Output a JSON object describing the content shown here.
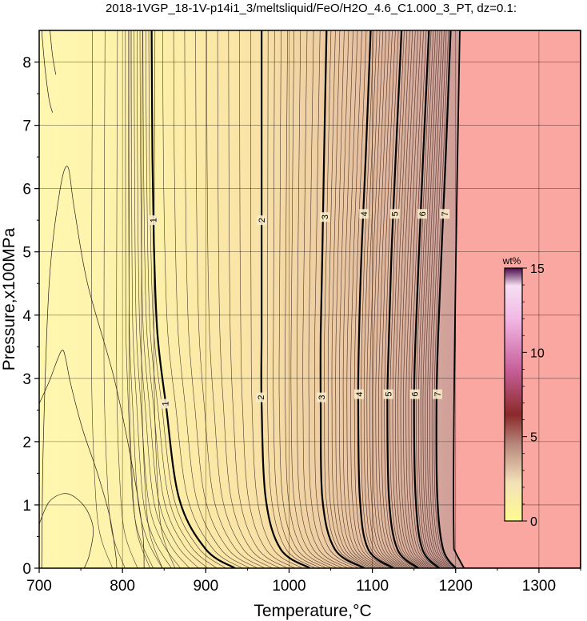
{
  "chart_data": {
    "type": "contour",
    "title": "2018-1VGP_18-1V-p14i1_3/meltsliquid/FeO/H2O_4.6_C1.000_3_PT, dz=0.1:",
    "xlabel": "Temperature,°C",
    "ylabel": "Pressure,x100MPa",
    "xlim": [
      700,
      1350
    ],
    "ylim": [
      0,
      8.5
    ],
    "x_ticks": [
      700,
      800,
      900,
      1000,
      1100,
      1200,
      1300
    ],
    "y_ticks": [
      0,
      1,
      2,
      3,
      4,
      5,
      6,
      7,
      8
    ],
    "grid": true,
    "colorbar": {
      "unit": "wt%",
      "range": [
        0,
        15
      ],
      "ticks": [
        0,
        5,
        10,
        15
      ]
    },
    "region_no_data": {
      "t_boundary_at_p0": 1210,
      "t_boundary_at_p8_5": 1205,
      "color": "#f9a7a0"
    },
    "major_contours": [
      {
        "level": 1,
        "label": "1",
        "points": [
          [
            935,
            0
          ],
          [
            900,
            0.3
          ],
          [
            868,
            1.1
          ],
          [
            852,
            2.6
          ],
          [
            842,
            3.7
          ],
          [
            838,
            5.0
          ],
          [
            836,
            6.5
          ],
          [
            835,
            8.5
          ]
        ]
      },
      {
        "level": 2,
        "label": "2",
        "points": [
          [
            1025,
            0
          ],
          [
            990,
            0.3
          ],
          [
            972,
            1.1
          ],
          [
            967,
            2.6
          ],
          [
            967,
            3.7
          ],
          [
            967,
            5.0
          ],
          [
            967,
            6.5
          ],
          [
            967,
            8.5
          ]
        ]
      },
      {
        "level": 3,
        "label": "3",
        "points": [
          [
            1090,
            0
          ],
          [
            1055,
            0.3
          ],
          [
            1040,
            1.1
          ],
          [
            1038,
            2.6
          ],
          [
            1038,
            3.7
          ],
          [
            1040,
            5.0
          ],
          [
            1042,
            6.5
          ],
          [
            1045,
            8.5
          ]
        ]
      },
      {
        "level": 4,
        "label": "4",
        "points": [
          [
            1125,
            0
          ],
          [
            1095,
            0.3
          ],
          [
            1085,
            1.1
          ],
          [
            1083,
            2.6
          ],
          [
            1084,
            3.7
          ],
          [
            1087,
            5.0
          ],
          [
            1092,
            6.5
          ],
          [
            1098,
            8.5
          ]
        ]
      },
      {
        "level": 5,
        "label": "5",
        "points": [
          [
            1155,
            0
          ],
          [
            1130,
            0.3
          ],
          [
            1120,
            1.1
          ],
          [
            1118,
            2.6
          ],
          [
            1120,
            3.7
          ],
          [
            1123,
            5.0
          ],
          [
            1128,
            6.5
          ],
          [
            1135,
            8.5
          ]
        ]
      },
      {
        "level": 6,
        "label": "6",
        "points": [
          [
            1180,
            0
          ],
          [
            1160,
            0.3
          ],
          [
            1152,
            1.1
          ],
          [
            1150,
            2.6
          ],
          [
            1152,
            3.7
          ],
          [
            1156,
            5.0
          ],
          [
            1161,
            6.5
          ],
          [
            1168,
            8.5
          ]
        ]
      },
      {
        "level": 7,
        "label": "7",
        "points": [
          [
            1200,
            0
          ],
          [
            1185,
            0.3
          ],
          [
            1178,
            1.1
          ],
          [
            1177,
            2.6
          ],
          [
            1179,
            3.7
          ],
          [
            1183,
            5.0
          ],
          [
            1188,
            6.5
          ],
          [
            1194,
            8.5
          ]
        ]
      }
    ],
    "contour_labels": [
      {
        "text": "1",
        "x": 851,
        "y": 2.6
      },
      {
        "text": "1",
        "x": 837,
        "y": 5.5
      },
      {
        "text": "2",
        "x": 966,
        "y": 2.7
      },
      {
        "text": "2",
        "x": 967,
        "y": 5.5
      },
      {
        "text": "3",
        "x": 1039,
        "y": 2.7
      },
      {
        "text": "3",
        "x": 1043,
        "y": 5.55
      },
      {
        "text": "4",
        "x": 1084,
        "y": 2.75
      },
      {
        "text": "4",
        "x": 1090,
        "y": 5.6
      },
      {
        "text": "5",
        "x": 1119,
        "y": 2.75
      },
      {
        "text": "5",
        "x": 1127,
        "y": 5.6
      },
      {
        "text": "6",
        "x": 1151,
        "y": 2.75
      },
      {
        "text": "6",
        "x": 1160,
        "y": 5.6
      },
      {
        "text": "7",
        "x": 1178,
        "y": 2.75
      },
      {
        "text": "7",
        "x": 1187,
        "y": 5.6
      }
    ],
    "minor_contour_count": 70,
    "low_region_contours": [
      {
        "points": [
          [
            700,
            0.7
          ],
          [
            712,
            1.05
          ],
          [
            730,
            1.18
          ],
          [
            745,
            1.1
          ],
          [
            758,
            0.9
          ],
          [
            765,
            0.6
          ],
          [
            760,
            0.2
          ],
          [
            754,
            0
          ]
        ]
      },
      {
        "points": [
          [
            700,
            2.6
          ],
          [
            712,
            2.95
          ],
          [
            722,
            3.3
          ],
          [
            728,
            3.45
          ],
          [
            732,
            3.3
          ],
          [
            738,
            2.9
          ],
          [
            752,
            2.2
          ],
          [
            770,
            1.5
          ],
          [
            785,
            0.8
          ],
          [
            792,
            0.2
          ],
          [
            793,
            0
          ]
        ]
      },
      {
        "points": [
          [
            703,
            0
          ],
          [
            705,
            2
          ],
          [
            712,
            4.5
          ],
          [
            724,
            5.9
          ],
          [
            734,
            6.35
          ],
          [
            742,
            5.7
          ],
          [
            758,
            4.5
          ],
          [
            790,
            3.0
          ],
          [
            812,
            1.6
          ],
          [
            824,
            0.6
          ],
          [
            826,
            0
          ]
        ]
      },
      {
        "points": [
          [
            703,
            8.5
          ],
          [
            707,
            7.9
          ],
          [
            712,
            7.4
          ],
          [
            716,
            7.2
          ]
        ]
      },
      {
        "points": [
          [
            713,
            8.5
          ],
          [
            716,
            8.1
          ],
          [
            720,
            7.8
          ]
        ]
      }
    ]
  }
}
